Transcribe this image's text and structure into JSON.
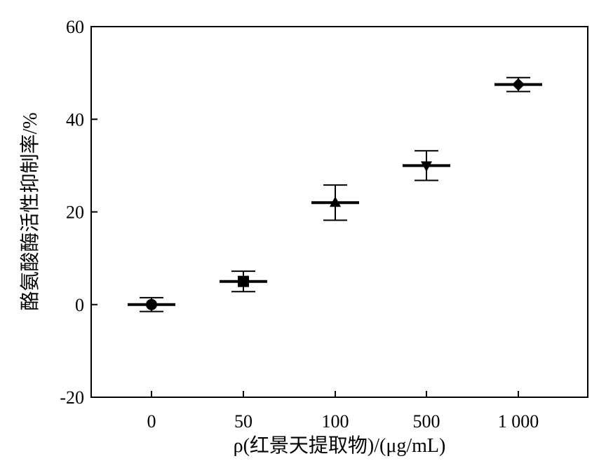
{
  "chart_data": {
    "type": "scatter",
    "title": "",
    "xlabel": "ρ(红景天提取物)/(μg/mL)",
    "ylabel": "酪氨酸酶活性抑制率/%",
    "categories": [
      "0",
      "50",
      "100",
      "500",
      "1 000"
    ],
    "y_ticks": [
      "-20",
      "0",
      "20",
      "40",
      "60"
    ],
    "ylim": [
      -20,
      60
    ],
    "grid": false,
    "legend": "none",
    "series": [
      {
        "values": [
          0,
          5,
          22,
          30,
          47.5
        ],
        "error": [
          1.5,
          2.2,
          3.8,
          3.2,
          1.5
        ],
        "markers": [
          "circle",
          "square",
          "triangle-up",
          "triangle-down",
          "diamond"
        ]
      }
    ],
    "colors": {
      "ink": "#000000",
      "background": "#ffffff"
    }
  }
}
